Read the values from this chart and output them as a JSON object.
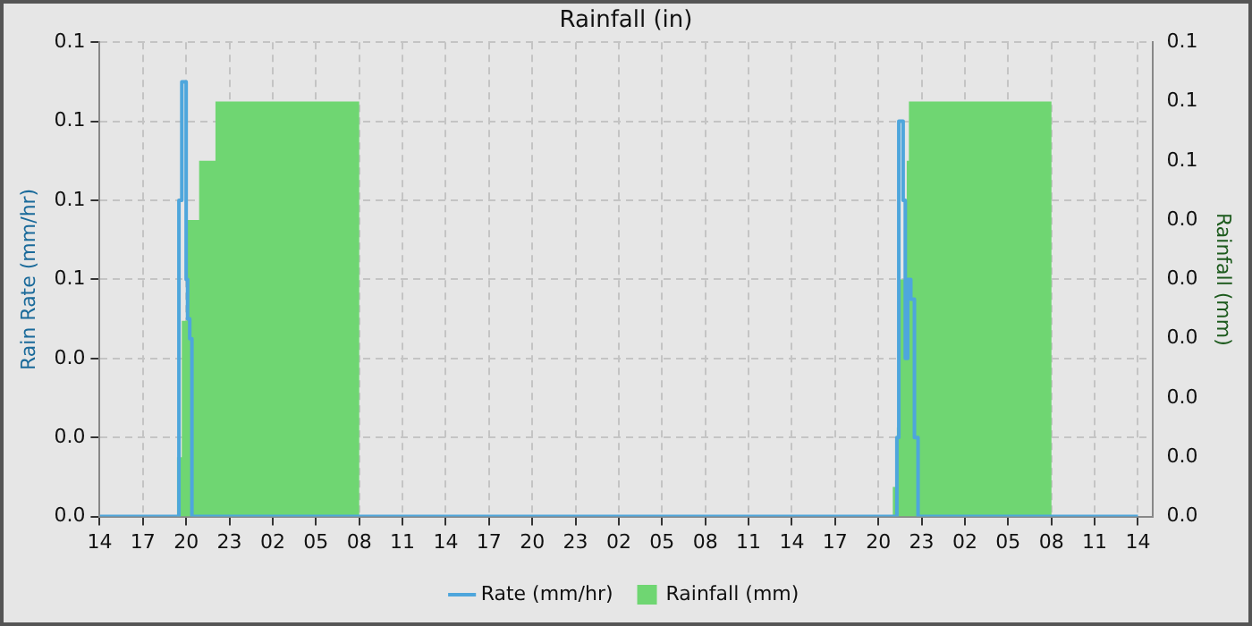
{
  "chart_data": {
    "type": "step",
    "title": "Rainfall (in)",
    "ylabel": "Rain Rate (mm/hr)",
    "y2label": "Rainfall (mm)",
    "xlim": [
      "--01-01T14:00",
      "--01-04T15:00"
    ],
    "xticks": [
      {
        "value": "--01-01T14:00",
        "label": "14"
      },
      {
        "value": "--01-01T17:00",
        "label": "17"
      },
      {
        "value": "--01-01T20:00",
        "label": "20"
      },
      {
        "value": "--01-01T23:00",
        "label": "23"
      },
      {
        "value": "--01-02T02:00",
        "label": "02"
      },
      {
        "value": "--01-02T05:00",
        "label": "05"
      },
      {
        "value": "--01-02T08:00",
        "label": "08"
      },
      {
        "value": "--01-02T11:00",
        "label": "11"
      },
      {
        "value": "--01-02T14:00",
        "label": "14"
      },
      {
        "value": "--01-02T17:00",
        "label": "17"
      },
      {
        "value": "--01-02T20:00",
        "label": "20"
      },
      {
        "value": "--01-02T23:00",
        "label": "23"
      },
      {
        "value": "--01-03T02:00",
        "label": "02"
      },
      {
        "value": "--01-03T05:00",
        "label": "05"
      },
      {
        "value": "--01-03T08:00",
        "label": "08"
      },
      {
        "value": "--01-03T11:00",
        "label": "11"
      },
      {
        "value": "--01-03T14:00",
        "label": "14"
      },
      {
        "value": "--01-03T17:00",
        "label": "17"
      },
      {
        "value": "--01-03T20:00",
        "label": "20"
      },
      {
        "value": "--01-03T23:00",
        "label": "23"
      },
      {
        "value": "--01-04T02:00",
        "label": "02"
      },
      {
        "value": "--01-04T05:00",
        "label": "05"
      },
      {
        "value": "--01-04T08:00",
        "label": "08"
      },
      {
        "value": "--01-04T11:00",
        "label": "11"
      },
      {
        "value": "--01-04T14:00",
        "label": "14"
      }
    ],
    "ylim": [
      0,
      0.12
    ],
    "yticks": [
      {
        "value": 0,
        "label": "0.0"
      },
      {
        "value": 0.02,
        "label": "0.0"
      },
      {
        "value": 0.04,
        "label": "0.0"
      },
      {
        "value": 0.06,
        "label": "0.1"
      },
      {
        "value": 0.08,
        "label": "0.1"
      },
      {
        "value": 0.1,
        "label": "0.1"
      },
      {
        "value": 0.12,
        "label": "0.1"
      }
    ],
    "y2lim": [
      0,
      0.08
    ],
    "y2ticks": [
      {
        "value": 0,
        "label": "0.0"
      },
      {
        "value": 0.01,
        "label": "0.0"
      },
      {
        "value": 0.02,
        "label": "0.0"
      },
      {
        "value": 0.03,
        "label": "0.0"
      },
      {
        "value": 0.04,
        "label": "0.0"
      },
      {
        "value": 0.05,
        "label": "0.0"
      },
      {
        "value": 0.06,
        "label": "0.1"
      },
      {
        "value": 0.07,
        "label": "0.1"
      },
      {
        "value": 0.08,
        "label": "0.1"
      }
    ],
    "grid": true,
    "legend": "bottom",
    "series": [
      {
        "name": "Rate (mm/hr)",
        "color": "#4ea6dc",
        "x": [
          "--01-01T14:00",
          "--01-01T19:30",
          "--01-01T19:42",
          "--01-01T20:00",
          "--01-01T20:06",
          "--01-01T20:15",
          "--01-01T20:24",
          "--01-03T21:17",
          "--01-03T21:25",
          "--01-03T21:43",
          "--01-03T21:52",
          "--01-03T22:02",
          "--01-03T22:15",
          "--01-03T22:30",
          "--01-03T22:45",
          "--01-04T14:00"
        ],
        "values": [
          0,
          0.08,
          0.11,
          0.06,
          0.05,
          0.045,
          0,
          0.02,
          0.1,
          0.08,
          0.04,
          0.06,
          0.055,
          0.02,
          0,
          0
        ]
      },
      {
        "name": "Rainfall (mm)",
        "type": "area",
        "axis": "y2",
        "color": "#6fd672",
        "x": [
          "--01-01T14:00",
          "--01-01T19:22",
          "--01-01T19:42",
          "--01-01T20:02",
          "--01-01T20:54",
          "--01-01T22:02",
          "--01-02T08:00",
          "--01-03T21:00",
          "--01-03T21:10",
          "--01-03T21:17",
          "--01-03T21:30",
          "--01-03T21:58",
          "--01-03T22:07",
          "--01-04T08:00",
          "--01-04T14:00"
        ],
        "values": [
          0,
          0.01,
          0.033,
          0.05,
          0.06,
          0.07,
          0,
          0.005,
          0.01,
          0.015,
          0.04,
          0.06,
          0.07,
          0,
          0
        ]
      }
    ]
  }
}
